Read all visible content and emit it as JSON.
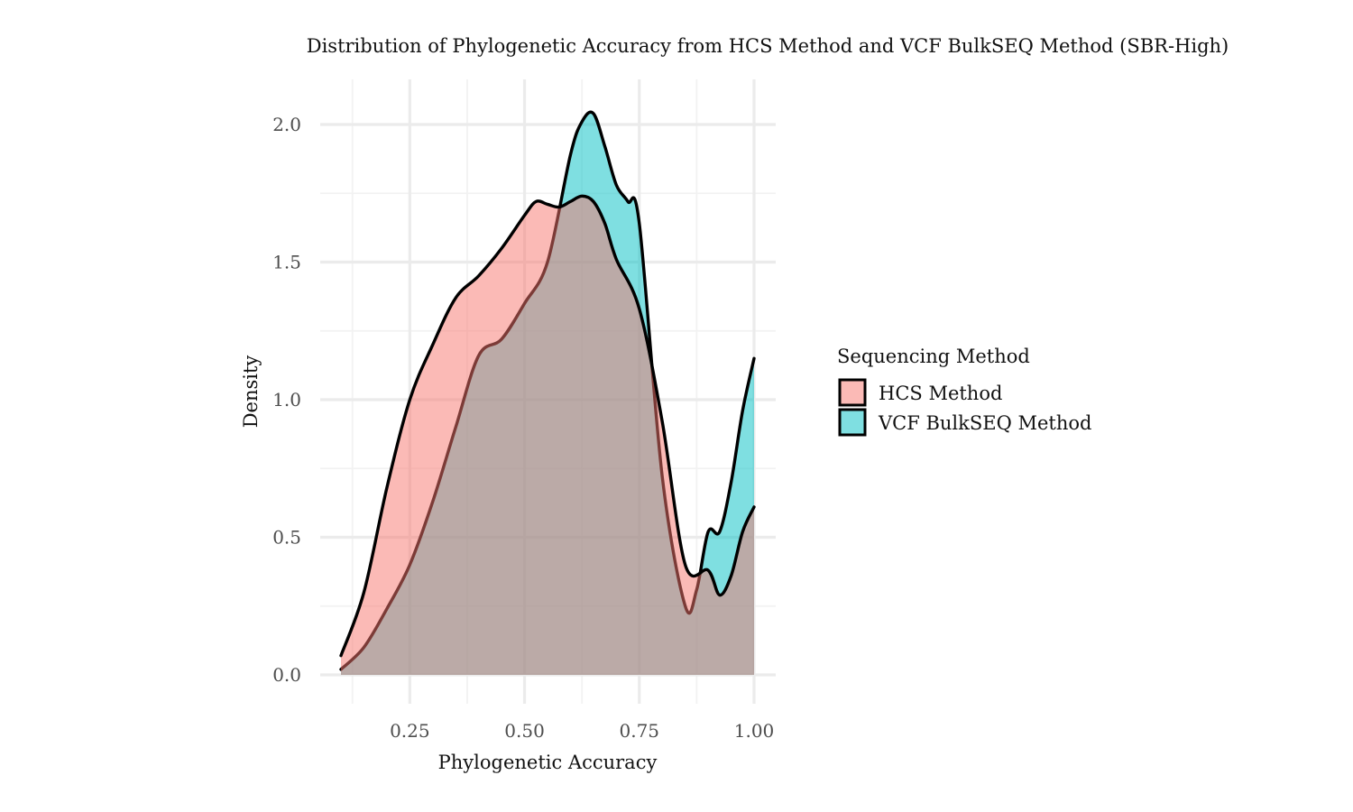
{
  "chart_data": {
    "type": "area",
    "title": "Distribution of Phylogenetic Accuracy from HCS Method and VCF BulkSEQ Method (SBR-High)",
    "xlabel": "Phylogenetic Accuracy",
    "ylabel": "Density",
    "xlim": [
      0.1,
      1.0
    ],
    "ylim": [
      0.0,
      2.0
    ],
    "xticks": [
      "0.25",
      "0.50",
      "0.75",
      "1.00"
    ],
    "xtick_values": [
      0.25,
      0.5,
      0.75,
      1.0
    ],
    "xminor": [
      0.125,
      0.375,
      0.625,
      0.875
    ],
    "yticks": [
      "0.0",
      "0.5",
      "1.0",
      "1.5",
      "2.0"
    ],
    "ytick_values": [
      0.0,
      0.5,
      1.0,
      1.5,
      2.0
    ],
    "yminor": [
      0.25,
      0.75,
      1.25,
      1.75
    ],
    "grid": true,
    "legend": {
      "title": "Sequencing Method",
      "position": "right"
    },
    "series": [
      {
        "name": "HCS Method",
        "color": "#F8766D",
        "x": [
          0.1,
          0.15,
          0.2,
          0.25,
          0.3,
          0.35,
          0.4,
          0.45,
          0.5,
          0.525,
          0.55,
          0.575,
          0.6,
          0.625,
          0.65,
          0.675,
          0.7,
          0.75,
          0.8,
          0.85,
          0.9,
          0.925,
          0.95,
          0.975,
          1.0
        ],
        "y": [
          0.07,
          0.3,
          0.68,
          1.0,
          1.2,
          1.37,
          1.45,
          1.55,
          1.67,
          1.72,
          1.71,
          1.7,
          1.72,
          1.74,
          1.72,
          1.64,
          1.51,
          1.33,
          0.92,
          0.4,
          0.38,
          0.29,
          0.36,
          0.52,
          0.61
        ]
      },
      {
        "name": "VCF BulkSEQ Method",
        "color": "#00BFC4",
        "x": [
          0.1,
          0.15,
          0.2,
          0.25,
          0.3,
          0.35,
          0.4,
          0.45,
          0.5,
          0.55,
          0.6,
          0.625,
          0.65,
          0.675,
          0.7,
          0.725,
          0.75,
          0.8,
          0.85,
          0.875,
          0.9,
          0.925,
          0.95,
          0.975,
          1.0
        ],
        "y": [
          0.02,
          0.1,
          0.24,
          0.4,
          0.63,
          0.9,
          1.16,
          1.22,
          1.35,
          1.5,
          1.89,
          2.01,
          2.04,
          1.92,
          1.78,
          1.72,
          1.64,
          0.72,
          0.25,
          0.31,
          0.52,
          0.52,
          0.7,
          0.96,
          1.15
        ]
      }
    ]
  }
}
